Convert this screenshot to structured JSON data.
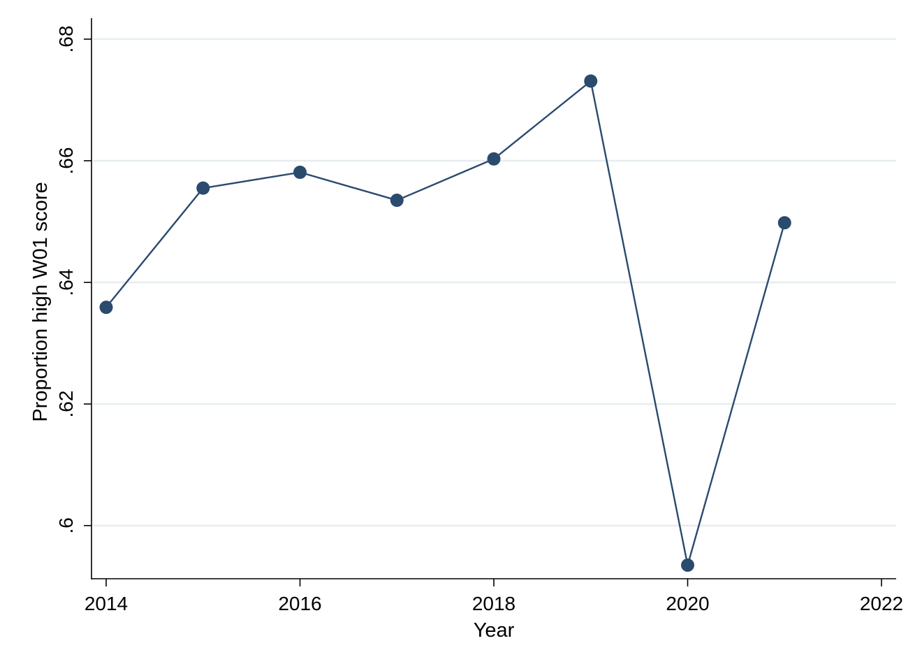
{
  "chart_data": {
    "type": "line",
    "title": "",
    "xlabel": "Year",
    "ylabel": "Proportion high W01 score",
    "xlim": [
      2014,
      2022
    ],
    "ylim": [
      0.5915,
      0.6825
    ],
    "x_ticks": [
      2014,
      2016,
      2018,
      2020,
      2022
    ],
    "x_tick_labels": [
      "2014",
      "2016",
      "2018",
      "2020",
      "2022"
    ],
    "y_ticks": [
      0.6,
      0.62,
      0.64,
      0.66,
      0.68
    ],
    "y_tick_labels": [
      ".6",
      ".62",
      ".64",
      ".66",
      ".68"
    ],
    "grid": true,
    "series": [
      {
        "x": [
          2014,
          2015,
          2016,
          2017,
          2018,
          2019,
          2020,
          2021
        ],
        "values": [
          0.6359,
          0.6555,
          0.6581,
          0.6535,
          0.6603,
          0.6731,
          0.5935,
          0.6498
        ],
        "color": "#2a4a6e"
      }
    ]
  }
}
